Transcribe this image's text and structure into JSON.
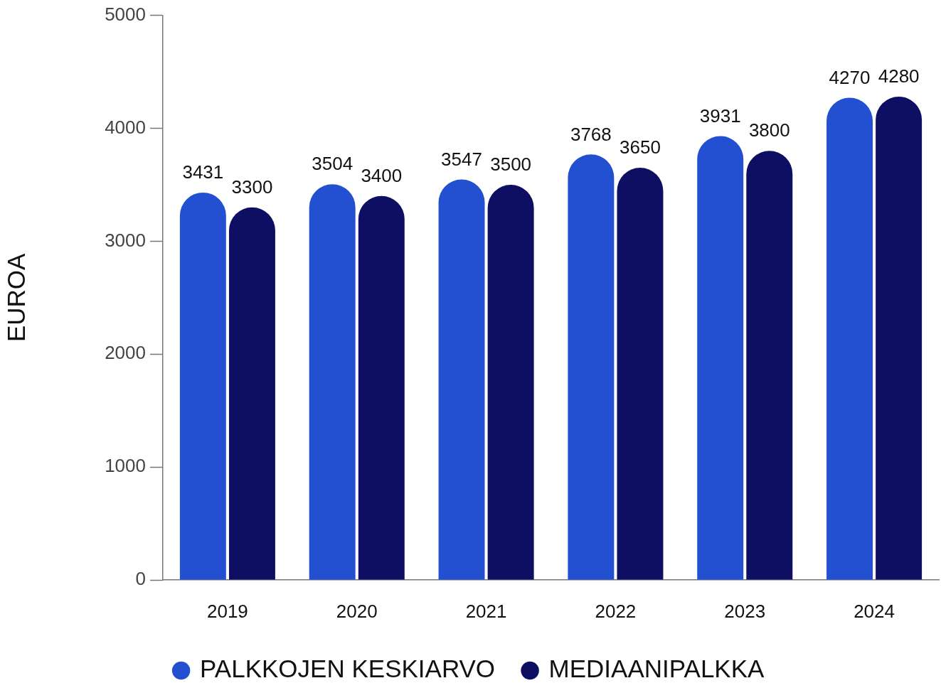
{
  "chart_data": {
    "type": "bar",
    "categories": [
      "2019",
      "2020",
      "2021",
      "2022",
      "2023",
      "2024"
    ],
    "ylabel": "EUROA",
    "ylim": [
      0,
      5000
    ],
    "yticks": [
      0,
      1000,
      2000,
      3000,
      4000,
      5000
    ],
    "grid": false,
    "legend": "bottom",
    "data_labels": true,
    "series": [
      {
        "name": "PALKKOJEN KESKIARVO",
        "color": "#2250d0",
        "values": [
          3431,
          3504,
          3547,
          3768,
          3931,
          4270
        ]
      },
      {
        "name": "MEDIAANIPALKKA",
        "color": "#0e0e62",
        "values": [
          3300,
          3400,
          3500,
          3650,
          3800,
          4280
        ]
      }
    ]
  }
}
